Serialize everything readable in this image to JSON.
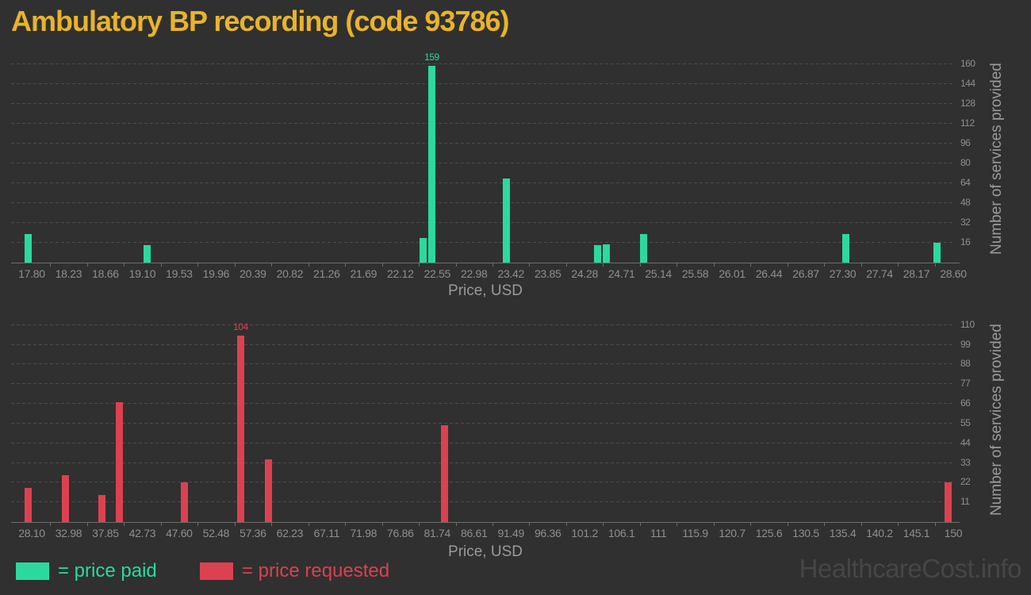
{
  "title": "Ambulatory BP recording (code 93786)",
  "watermark": "HealthcareCost.info",
  "colors": {
    "background": "#303030",
    "title": "#e9b32a",
    "paid": "#2bd99e",
    "requested": "#dc4150",
    "grid": "#4b4b4b",
    "axis": "#6d6d6d",
    "tick_text": "#8f8f8f",
    "axis_title_text": "#9a9a9a",
    "watermark_text": "#464646"
  },
  "legend": {
    "paid_label": "= price paid",
    "requested_label": "= price requested"
  },
  "chart_data": [
    {
      "type": "bar",
      "series": "price paid",
      "color": "#2bd99e",
      "xlabel": "Price, USD",
      "ylabel": "Number of services provided",
      "x_range": [
        17.8,
        28.6
      ],
      "ylim": [
        0,
        167
      ],
      "grid": true,
      "y_axis_side": "right",
      "x_ticks": [
        "17.80",
        "18.23",
        "18.66",
        "19.10",
        "19.53",
        "19.96",
        "20.39",
        "20.82",
        "21.26",
        "21.69",
        "22.12",
        "22.55",
        "22.98",
        "23.42",
        "23.85",
        "24.28",
        "24.71",
        "25.14",
        "25.58",
        "26.01",
        "26.44",
        "26.87",
        "27.30",
        "27.74",
        "28.17",
        "28.60"
      ],
      "y_ticks": [
        16,
        32,
        48,
        64,
        80,
        96,
        112,
        128,
        144,
        160
      ],
      "bars": [
        {
          "price": 17.8,
          "count": 23
        },
        {
          "price": 19.19,
          "count": 14
        },
        {
          "price": 22.43,
          "count": 20
        },
        {
          "price": 22.53,
          "count": 159,
          "label": "159"
        },
        {
          "price": 23.4,
          "count": 68
        },
        {
          "price": 24.47,
          "count": 14
        },
        {
          "price": 24.58,
          "count": 15
        },
        {
          "price": 25.01,
          "count": 23
        },
        {
          "price": 27.38,
          "count": 23
        },
        {
          "price": 28.45,
          "count": 16
        }
      ]
    },
    {
      "type": "bar",
      "series": "price requested",
      "color": "#dc4150",
      "xlabel": "Price, USD",
      "ylabel": "Number of services provided",
      "x_range": [
        28.1,
        150
      ],
      "ylim": [
        0,
        114
      ],
      "grid": true,
      "y_axis_side": "right",
      "x_ticks": [
        "28.10",
        "32.98",
        "37.85",
        "42.73",
        "47.60",
        "52.48",
        "57.36",
        "62.23",
        "67.11",
        "71.98",
        "76.86",
        "81.74",
        "86.61",
        "91.49",
        "96.36",
        "101.2",
        "106.1",
        "111",
        "115.9",
        "120.7",
        "125.6",
        "130.5",
        "135.4",
        "140.2",
        "145.1",
        "150"
      ],
      "y_ticks": [
        11,
        22,
        33,
        44,
        55,
        66,
        77,
        88,
        99,
        110
      ],
      "bars": [
        {
          "price": 28.1,
          "count": 19
        },
        {
          "price": 32.98,
          "count": 26
        },
        {
          "price": 37.85,
          "count": 15
        },
        {
          "price": 40.2,
          "count": 67
        },
        {
          "price": 48.8,
          "count": 22
        },
        {
          "price": 56.2,
          "count": 104,
          "label": "104"
        },
        {
          "price": 59.9,
          "count": 35
        },
        {
          "price": 83.2,
          "count": 54
        },
        {
          "price": 149.8,
          "count": 22
        }
      ]
    }
  ]
}
